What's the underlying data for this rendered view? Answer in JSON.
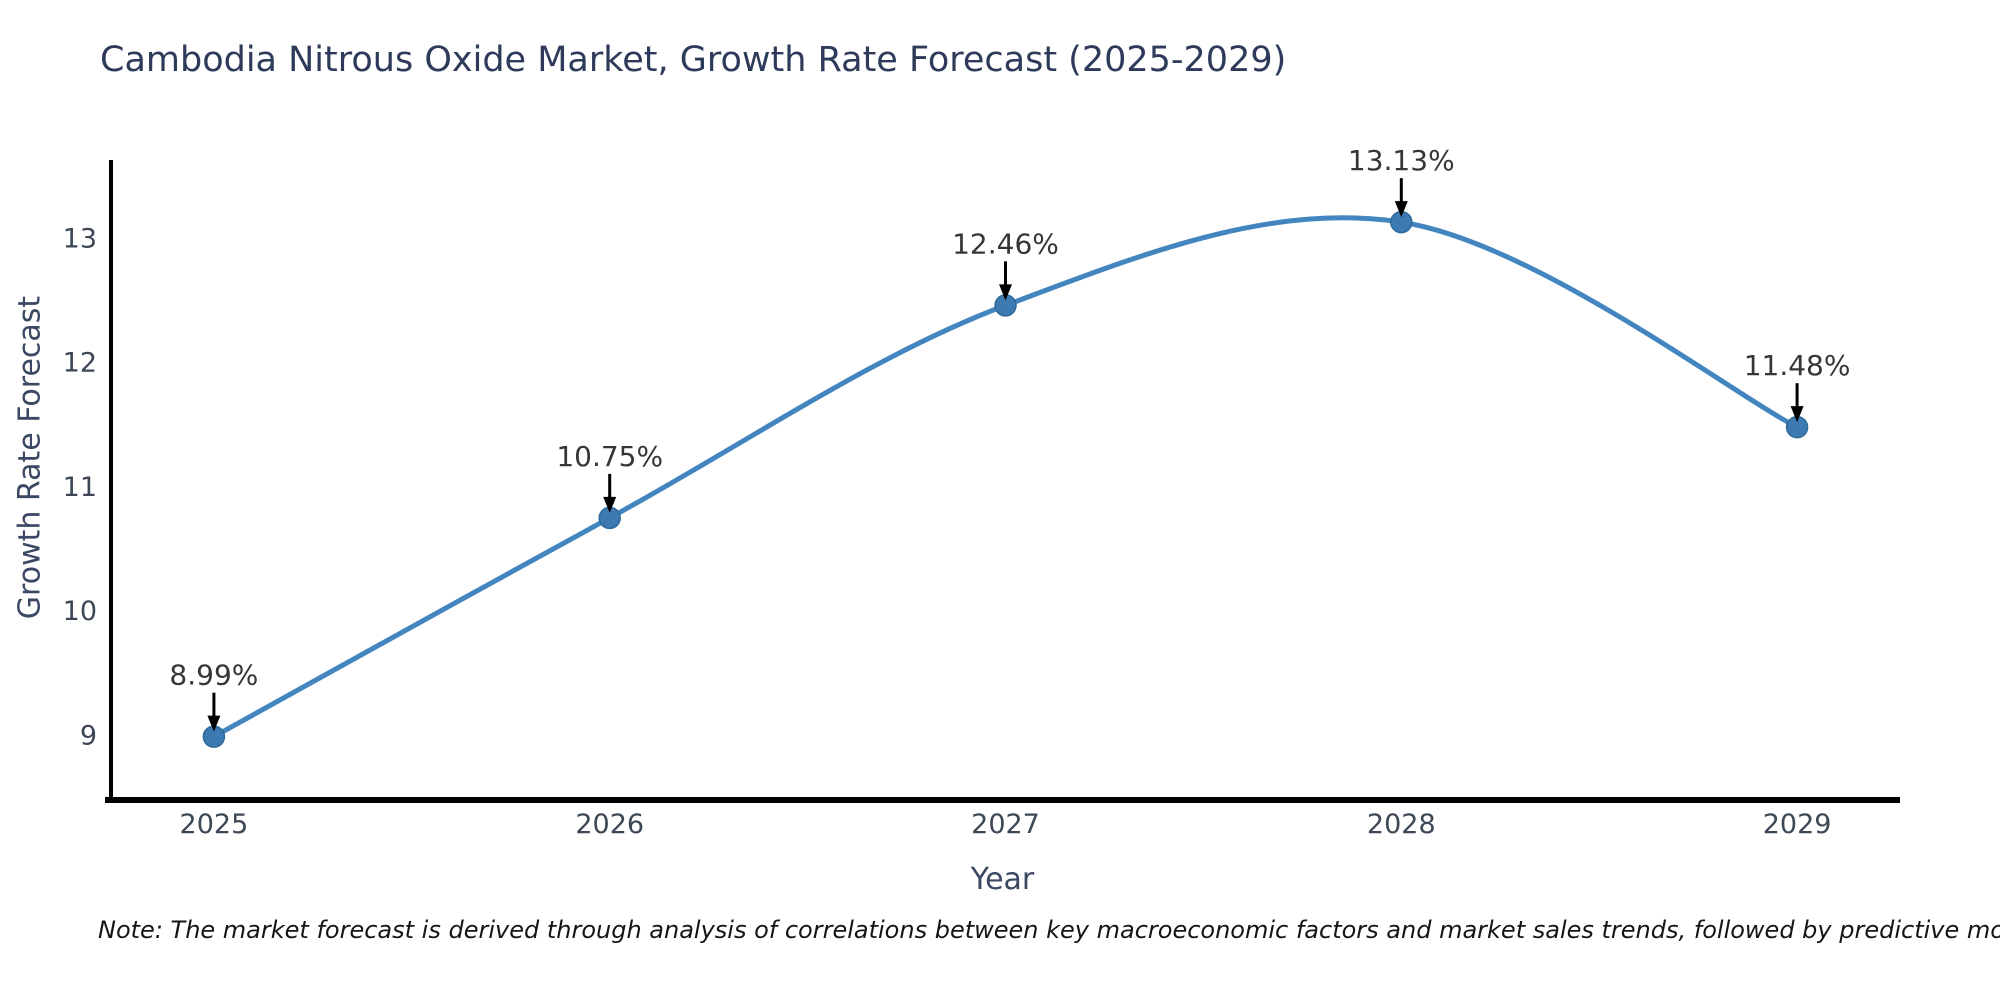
{
  "chart_data": {
    "type": "line",
    "title": "Cambodia Nitrous Oxide Market, Growth Rate Forecast (2025-2029)",
    "xlabel": "Year",
    "ylabel": "Growth Rate Forecast",
    "categories": [
      2025,
      2026,
      2027,
      2028,
      2029
    ],
    "values": [
      8.99,
      10.75,
      12.46,
      13.13,
      11.48
    ],
    "point_labels": [
      "8.99%",
      "10.75%",
      "12.46%",
      "13.13%",
      "11.48%"
    ],
    "x_ticks": [
      "2025",
      "2026",
      "2027",
      "2028",
      "2029"
    ],
    "y_ticks": [
      9,
      10,
      11,
      12,
      13
    ],
    "xlim": [
      2024.74,
      2029.26
    ],
    "ylim": [
      8.48,
      13.63
    ],
    "grid": false,
    "legend": "none",
    "smooth": true,
    "colors": {
      "line": "#4385bf",
      "marker_fill": "#3c7ab1",
      "marker_edge": "#2f6a9b",
      "axis": "#000000",
      "tick_label": "#3d4756",
      "annotation": "#363636",
      "title": "#2e3a59",
      "axis_label": "#3b4863"
    }
  },
  "note": {
    "text": "Note: The market forecast is derived through analysis of correlations between key macroeconomic factors and market sales trends, followed by predictive modeling to project future sales"
  }
}
